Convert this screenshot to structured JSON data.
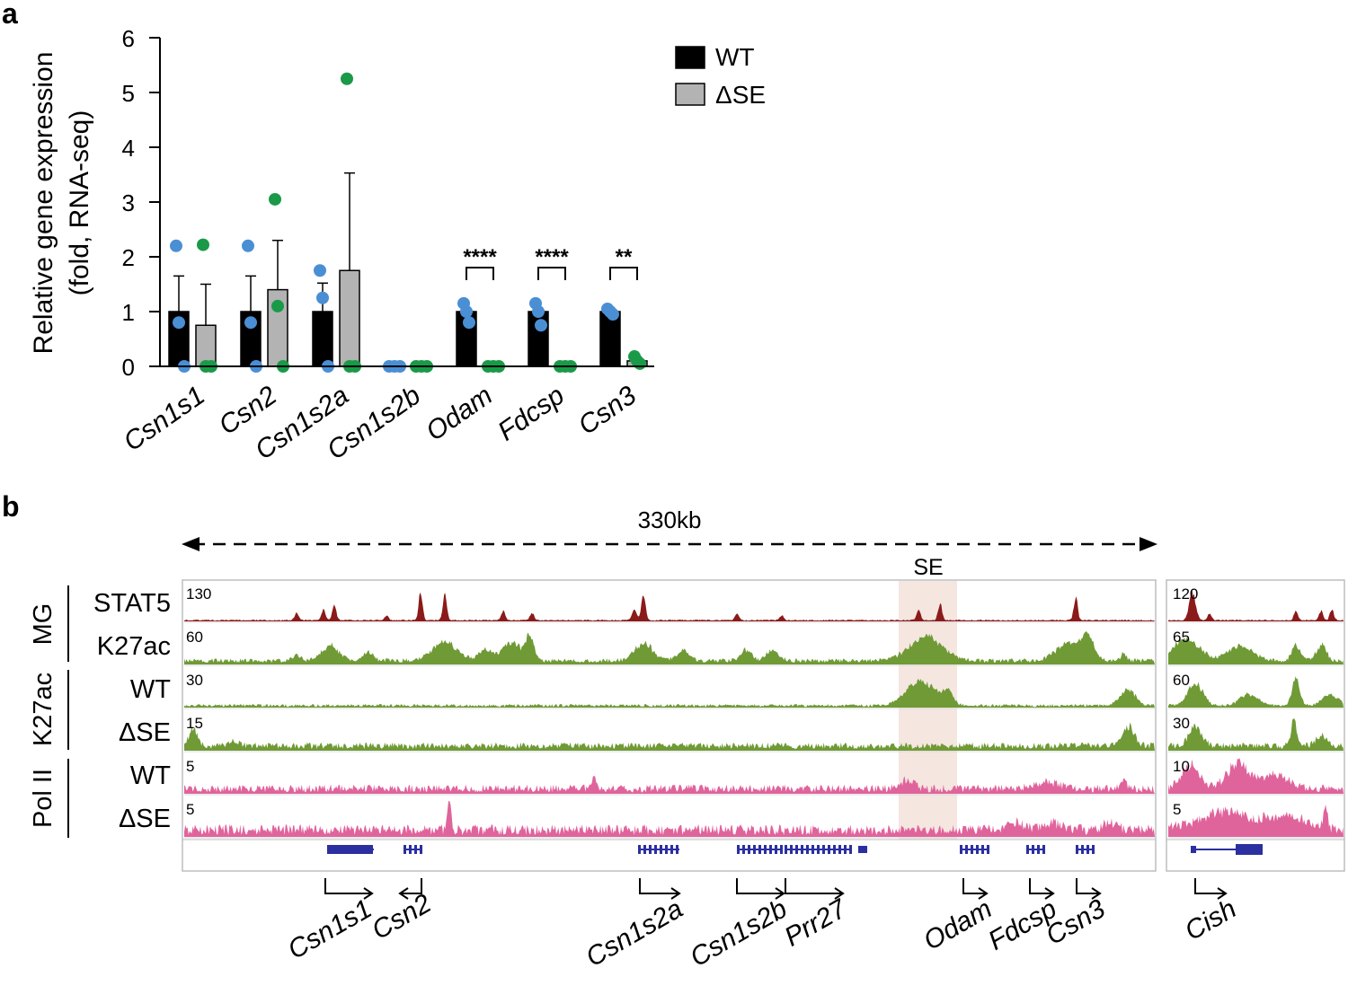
{
  "colors": {
    "wt_bar": "#000000",
    "dse_bar": "#b3b3b3",
    "wt_dot": "#4a8fd4",
    "dse_dot": "#1a9a48",
    "stat5": "#8b1a1a",
    "k27ac": "#6f9a35",
    "pol2": "#e0649c",
    "se_highlight": "#f3e2da",
    "gene": "#2b2fa0"
  },
  "panel_a": {
    "label": "a",
    "legend": {
      "wt": "WT",
      "dse": "ΔSE"
    },
    "chart_data": {
      "type": "bar",
      "title": "",
      "xlabel": "",
      "ylabel": "Relative gene expression (fold, RNA-seq)",
      "ylabel_lines": [
        "Relative gene expression",
        "(fold, RNA-seq)"
      ],
      "ylim": [
        0,
        6
      ],
      "yticks": [
        "0",
        "1",
        "2",
        "3",
        "4",
        "5",
        "6"
      ],
      "categories": [
        "Csn1s1",
        "Csn2",
        "Csn1s2a",
        "Csn1s2b",
        "Odam",
        "Fdcsp",
        "Csn3"
      ],
      "series": [
        {
          "name": "WT",
          "values": [
            1.0,
            1.0,
            1.0,
            0.0,
            1.0,
            1.0,
            1.0
          ],
          "errors": [
            0.65,
            0.65,
            0.52,
            0.0,
            0.12,
            0.12,
            0.05
          ],
          "points": [
            [
              2.2,
              0.8,
              0.0
            ],
            [
              2.2,
              0.8,
              0.0
            ],
            [
              1.75,
              1.25,
              0.0
            ],
            [
              0.0,
              0.0,
              0.0
            ],
            [
              1.15,
              1.0,
              0.8
            ],
            [
              1.15,
              1.0,
              0.75
            ],
            [
              1.05,
              1.0,
              0.95
            ]
          ]
        },
        {
          "name": "ΔSE",
          "values": [
            0.75,
            1.4,
            1.75,
            0.0,
            0.0,
            0.0,
            0.1
          ],
          "errors": [
            0.75,
            0.9,
            1.78,
            0.0,
            0.0,
            0.0,
            0.05
          ],
          "points": [
            [
              2.22,
              0.0,
              0.0
            ],
            [
              3.05,
              1.1,
              0.0
            ],
            [
              5.25,
              0.0,
              0.0
            ],
            [
              0.0,
              0.0,
              0.0
            ],
            [
              0.0,
              0.0,
              0.0
            ],
            [
              0.0,
              0.0,
              0.0
            ],
            [
              0.18,
              0.1,
              0.05
            ]
          ]
        }
      ],
      "significance": [
        {
          "category": "Odam",
          "label": "****"
        },
        {
          "category": "Fdcsp",
          "label": "****"
        },
        {
          "category": "Csn3",
          "label": "**"
        }
      ]
    }
  },
  "panel_b": {
    "label": "b",
    "scale_label": "330kb",
    "se_label": "SE",
    "groups": [
      {
        "label": "MG",
        "tracks": [
          0,
          1
        ]
      },
      {
        "label": "K27ac",
        "tracks": [
          2,
          3
        ]
      },
      {
        "label": "Pol II",
        "tracks": [
          4,
          5
        ]
      }
    ],
    "tracks": [
      {
        "name": "STAT5",
        "type": "stat5",
        "scale_main": "130",
        "scale_cish": "120"
      },
      {
        "name": "K27ac",
        "type": "k27ac",
        "scale_main": "60",
        "scale_cish": "65"
      },
      {
        "name": "WT",
        "type": "k27ac",
        "scale_main": "30",
        "scale_cish": "60"
      },
      {
        "name": "ΔSE",
        "type": "k27ac",
        "scale_main": "15",
        "scale_cish": "30"
      },
      {
        "name": "WT",
        "type": "pol2",
        "scale_main": "5",
        "scale_cish": "10"
      },
      {
        "name": "ΔSE",
        "type": "pol2",
        "scale_main": "5",
        "scale_cish": "5"
      }
    ],
    "genes": [
      "Csn1s1",
      "Csn2",
      "Csn1s2a",
      "Csn1s2b",
      "Prr27",
      "Odam",
      "Fdcsp",
      "Csn3",
      "Cish"
    ]
  }
}
